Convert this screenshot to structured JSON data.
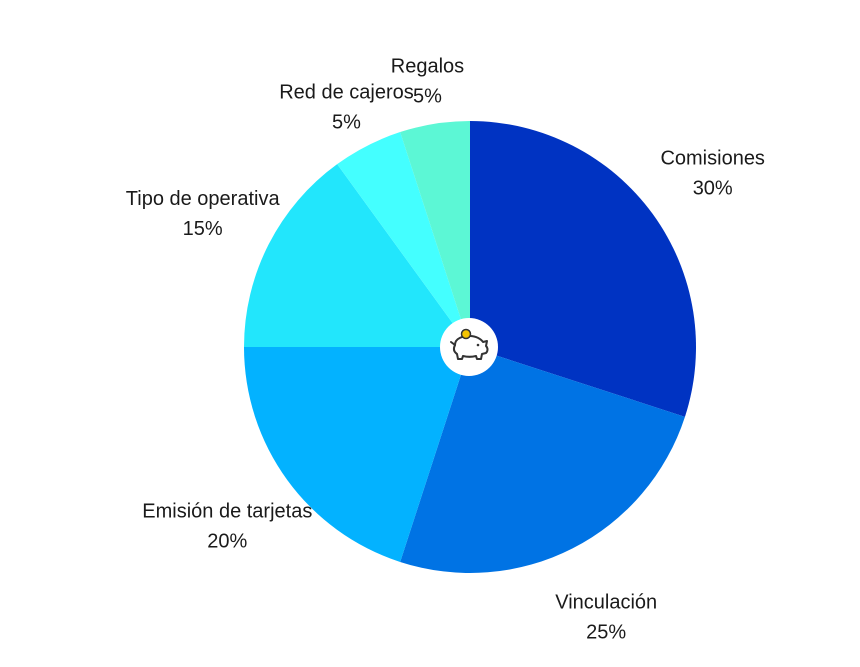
{
  "chart_data": {
    "type": "pie",
    "title": "",
    "start_angle_deg": 0,
    "direction": "clockwise",
    "slices": [
      {
        "label": "Comisiones",
        "value": 30,
        "value_label": "30%",
        "color": "#0033c2"
      },
      {
        "label": "Vinculación",
        "value": 25,
        "value_label": "25%",
        "color": "#0073e4"
      },
      {
        "label": "Emisión de tarjetas",
        "value": 20,
        "value_label": "20%",
        "color": "#03b2ff"
      },
      {
        "label": "Tipo de operativa",
        "value": 15,
        "value_label": "15%",
        "color": "#22e6fc"
      },
      {
        "label": "Red de cajeros",
        "value": 5,
        "value_label": "5%",
        "color": "#44ffff"
      },
      {
        "label": "Regalos",
        "value": 5,
        "value_label": "5%",
        "color": "#5cf7d5"
      }
    ],
    "center_icon": "piggy-bank-icon"
  }
}
